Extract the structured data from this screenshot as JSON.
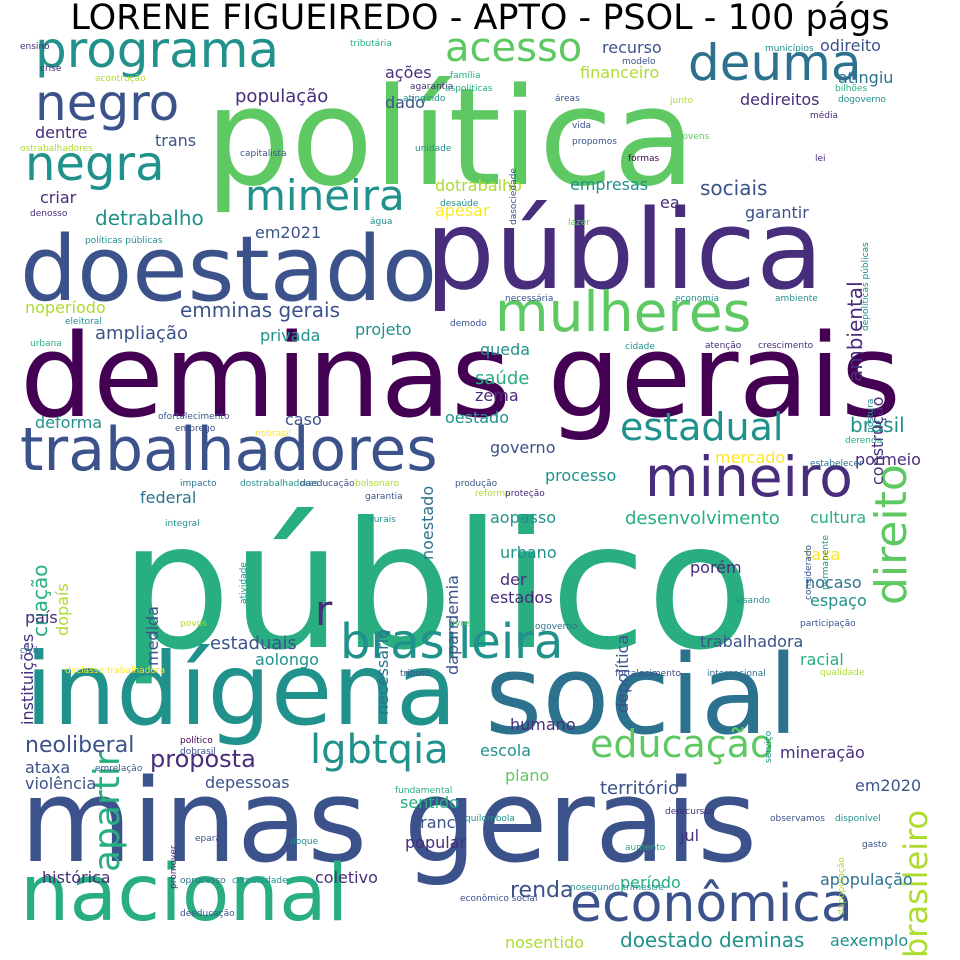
{
  "title": "LORENE FIGUEIREDO - APTO - PSOL - 100 págs",
  "colors": {
    "c0": "#440154",
    "c1": "#472d7b",
    "c2": "#3b528b",
    "c3": "#2c728e",
    "c4": "#21918c",
    "c5": "#28ae80",
    "c6": "#5ec962",
    "c7": "#addc30",
    "c8": "#fde725"
  },
  "words": [
    {
      "t": "público",
      "c": "c5"
    },
    {
      "t": "política",
      "c": "c6"
    },
    {
      "t": "deminas gerais",
      "c": "c0"
    },
    {
      "t": "minas gerais",
      "c": "c2"
    },
    {
      "t": "pública",
      "c": "c1"
    },
    {
      "t": "social",
      "c": "c3"
    },
    {
      "t": "indígena",
      "c": "c4"
    },
    {
      "t": "doestado",
      "c": "c2"
    },
    {
      "t": "nacional",
      "c": "c5"
    },
    {
      "t": "trabalhadores",
      "c": "c2"
    },
    {
      "t": "mulheres",
      "c": "c6"
    },
    {
      "t": "mineiro",
      "c": "c1"
    },
    {
      "t": "econômica",
      "c": "c2"
    },
    {
      "t": "brasileira",
      "c": "c4"
    },
    {
      "t": "programa",
      "c": "c4"
    },
    {
      "t": "deuma",
      "c": "c3"
    },
    {
      "t": "negro",
      "c": "c2"
    },
    {
      "t": "negra",
      "c": "c4"
    },
    {
      "t": "direito",
      "c": "c6"
    },
    {
      "t": "mineira",
      "c": "c4"
    },
    {
      "t": "acesso",
      "c": "c6"
    },
    {
      "t": "estadual",
      "c": "c4"
    },
    {
      "t": "educação",
      "c": "c6"
    },
    {
      "t": "lgbtqia",
      "c": "c4"
    },
    {
      "t": "apartir",
      "c": "c5"
    },
    {
      "t": "brasileiro",
      "c": "c7"
    },
    {
      "t": "r",
      "c": "c1"
    },
    {
      "t": "renda",
      "c": "c2"
    },
    {
      "t": "doestado deminas",
      "c": "c4"
    },
    {
      "t": "proposta",
      "c": "c1"
    },
    {
      "t": "neoliberal",
      "c": "c2"
    },
    {
      "t": "emminas gerais",
      "c": "c2"
    },
    {
      "t": "detrabalho",
      "c": "c4"
    },
    {
      "t": "sociais",
      "c": "c2"
    },
    {
      "t": "ambiental",
      "c": "c1"
    },
    {
      "t": "brasil",
      "c": "c4"
    },
    {
      "t": "desenvolvimento",
      "c": "c5"
    },
    {
      "t": "saúde",
      "c": "c5"
    },
    {
      "t": "ampliação",
      "c": "c2"
    },
    {
      "t": "população",
      "c": "c1"
    },
    {
      "t": "criação",
      "c": "c5"
    },
    {
      "t": "mercado",
      "c": "c8"
    },
    {
      "t": "território",
      "c": "c2"
    },
    {
      "t": "empresas",
      "c": "c4"
    },
    {
      "t": "estaduais",
      "c": "c2"
    },
    {
      "t": "financeiro",
      "c": "c7"
    },
    {
      "t": "recurso",
      "c": "c2"
    },
    {
      "t": "ações",
      "c": "c1"
    },
    {
      "t": "dentre",
      "c": "c1"
    },
    {
      "t": "trans",
      "c": "c2"
    },
    {
      "t": "criar",
      "c": "c1"
    },
    {
      "t": "dedireitos",
      "c": "c1"
    },
    {
      "t": "odireito",
      "c": "c2"
    },
    {
      "t": "atingiu",
      "c": "c3"
    },
    {
      "t": "dado",
      "c": "c2"
    },
    {
      "t": "dotrabalho",
      "c": "c7"
    },
    {
      "t": "apesar",
      "c": "c8"
    },
    {
      "t": "ea",
      "c": "c1"
    },
    {
      "t": "garantir",
      "c": "c2"
    },
    {
      "t": "em2021",
      "c": "c2"
    },
    {
      "t": "noperíodo",
      "c": "c7"
    },
    {
      "t": "privada",
      "c": "c4"
    },
    {
      "t": "projeto",
      "c": "c4"
    },
    {
      "t": "queda",
      "c": "c4"
    },
    {
      "t": "construção",
      "c": "c1"
    },
    {
      "t": "deforma",
      "c": "c4"
    },
    {
      "t": "caso",
      "c": "c2"
    },
    {
      "t": "noestado",
      "c": "c3"
    },
    {
      "t": "zema",
      "c": "c1"
    },
    {
      "t": "oestado",
      "c": "c4"
    },
    {
      "t": "governo",
      "c": "c2"
    },
    {
      "t": "processo",
      "c": "c4"
    },
    {
      "t": "pormeio",
      "c": "c1"
    },
    {
      "t": "federal",
      "c": "c3"
    },
    {
      "t": "cultura",
      "c": "c5"
    },
    {
      "t": "taxa",
      "c": "c8"
    },
    {
      "t": "espaço",
      "c": "c4"
    },
    {
      "t": "nocaso",
      "c": "c3"
    },
    {
      "t": "medida",
      "c": "c2"
    },
    {
      "t": "necessário",
      "c": "c3"
    },
    {
      "t": "dapandemia",
      "c": "c2"
    },
    {
      "t": "depolítica",
      "c": "c2"
    },
    {
      "t": "aopasso",
      "c": "c4"
    },
    {
      "t": "urbano",
      "c": "c4"
    },
    {
      "t": "porém",
      "c": "c1"
    },
    {
      "t": "der",
      "c": "c1"
    },
    {
      "t": "estados",
      "c": "c1"
    },
    {
      "t": "país",
      "c": "c1"
    },
    {
      "t": "instituições",
      "c": "c1"
    },
    {
      "t": "dopaís",
      "c": "c7"
    },
    {
      "t": "aolongo",
      "c": "c4"
    },
    {
      "t": "trabalhadora",
      "c": "c2"
    },
    {
      "t": "racial",
      "c": "c5"
    },
    {
      "t": "humano",
      "c": "c1"
    },
    {
      "t": "escola",
      "c": "c4"
    },
    {
      "t": "ataxa",
      "c": "c2"
    },
    {
      "t": "plano",
      "c": "c6"
    },
    {
      "t": "violência",
      "c": "c2"
    },
    {
      "t": "depessoas",
      "c": "c2"
    },
    {
      "t": "mineração",
      "c": "c1"
    },
    {
      "t": "em2020",
      "c": "c2"
    },
    {
      "t": "sentido",
      "c": "c5"
    },
    {
      "t": "branco",
      "c": "c2"
    },
    {
      "t": "popular",
      "c": "c1"
    },
    {
      "t": "jul",
      "c": "c1"
    },
    {
      "t": "histórica",
      "c": "c1"
    },
    {
      "t": "coletivo",
      "c": "c1"
    },
    {
      "t": "período",
      "c": "c5"
    },
    {
      "t": "apopulação",
      "c": "c3"
    },
    {
      "t": "nosentido",
      "c": "c7"
    },
    {
      "t": "aexemplo",
      "c": "c4"
    },
    {
      "t": "ensino",
      "c": "c1"
    },
    {
      "t": "crise",
      "c": "c1"
    },
    {
      "t": "acontrução",
      "c": "c7"
    },
    {
      "t": "tributária",
      "c": "c5"
    },
    {
      "t": "família",
      "c": "c5"
    },
    {
      "t": "modelo",
      "c": "c2"
    },
    {
      "t": "agarantia",
      "c": "c1"
    },
    {
      "t": "aspolíticas",
      "c": "c5"
    },
    {
      "t": "atingindo",
      "c": "c4"
    },
    {
      "t": "áreas",
      "c": "c2"
    },
    {
      "t": "junto",
      "c": "c7"
    },
    {
      "t": "municípios",
      "c": "c4"
    },
    {
      "t": "bilhões",
      "c": "c5"
    },
    {
      "t": "dogoverno",
      "c": "c4"
    },
    {
      "t": "média",
      "c": "c1"
    },
    {
      "t": "dasociedade",
      "c": "c2"
    },
    {
      "t": "vida",
      "c": "c2"
    },
    {
      "t": "propomos",
      "c": "c2"
    },
    {
      "t": "unidade",
      "c": "c4"
    },
    {
      "t": "jovens",
      "c": "c6"
    },
    {
      "t": "formas",
      "c": "c0"
    },
    {
      "t": "lei",
      "c": "c1"
    },
    {
      "t": "depolíticas públicas",
      "c": "c4"
    },
    {
      "t": "ostrabalhadores",
      "c": "c7"
    },
    {
      "t": "capitalista",
      "c": "c2"
    },
    {
      "t": "denosso",
      "c": "c1"
    },
    {
      "t": "água",
      "c": "c4"
    },
    {
      "t": "desaúde",
      "c": "c4"
    },
    {
      "t": "lazer",
      "c": "c6"
    },
    {
      "t": "políticas públicas",
      "c": "c4"
    },
    {
      "t": "necessária",
      "c": "c2"
    },
    {
      "t": "economia",
      "c": "c4"
    },
    {
      "t": "ambiente",
      "c": "c4"
    },
    {
      "t": "eleitoral",
      "c": "c4"
    },
    {
      "t": "demodo",
      "c": "c2"
    },
    {
      "t": "urbana",
      "c": "c5"
    },
    {
      "t": "cidade",
      "c": "c4"
    },
    {
      "t": "atenção",
      "c": "c1"
    },
    {
      "t": "crescimento",
      "c": "c1"
    },
    {
      "t": "postura",
      "c": "c4"
    },
    {
      "t": "ofortalecimento",
      "c": "c2"
    },
    {
      "t": "emprego",
      "c": "c2"
    },
    {
      "t": "nobrasil",
      "c": "c8"
    },
    {
      "t": "derenda",
      "c": "c5"
    },
    {
      "t": "estabelecer",
      "c": "c3"
    },
    {
      "t": "impacto",
      "c": "c3"
    },
    {
      "t": "dostrabalhadores",
      "c": "c4"
    },
    {
      "t": "daeducação",
      "c": "c2"
    },
    {
      "t": "bolsonaro",
      "c": "c7"
    },
    {
      "t": "produção",
      "c": "c2"
    },
    {
      "t": "garantia",
      "c": "c2"
    },
    {
      "t": "reforma",
      "c": "c7"
    },
    {
      "t": "proteção",
      "c": "c1"
    },
    {
      "t": "integral",
      "c": "c4"
    },
    {
      "t": "rurais",
      "c": "c4"
    },
    {
      "t": "atividade",
      "c": "c4"
    },
    {
      "t": "permanente",
      "c": "c4"
    },
    {
      "t": "considerado",
      "c": "c2"
    },
    {
      "t": "povos",
      "c": "c7"
    },
    {
      "t": "livre",
      "c": "c6"
    },
    {
      "t": "visando",
      "c": "c4"
    },
    {
      "t": "ogoverno",
      "c": "c3"
    },
    {
      "t": "participação",
      "c": "c2"
    },
    {
      "t": "civil",
      "c": "c3"
    },
    {
      "t": "daclasse trabalhadora",
      "c": "c8"
    },
    {
      "t": "tributo",
      "c": "c2"
    },
    {
      "t": "fortalecimento",
      "c": "c2"
    },
    {
      "t": "internacional",
      "c": "c3"
    },
    {
      "t": "qualidade",
      "c": "c7"
    },
    {
      "t": "serviço",
      "c": "c4"
    },
    {
      "t": "político",
      "c": "c0"
    },
    {
      "t": "dobrasil",
      "c": "c2"
    },
    {
      "t": "emrelação",
      "c": "c2"
    },
    {
      "t": "fundamental",
      "c": "c5"
    },
    {
      "t": "quilombola",
      "c": "c4"
    },
    {
      "t": "derecursos",
      "c": "c1"
    },
    {
      "t": "observamos",
      "c": "c2"
    },
    {
      "t": "disponível",
      "c": "c4"
    },
    {
      "t": "doque",
      "c": "c4"
    },
    {
      "t": "epara",
      "c": "c2"
    },
    {
      "t": "promover",
      "c": "c1"
    },
    {
      "t": "dapopulação",
      "c": "c7"
    },
    {
      "t": "aumento",
      "c": "c5"
    },
    {
      "t": "gasto",
      "c": "c2"
    },
    {
      "t": "oprocesso",
      "c": "c3"
    },
    {
      "t": "comunidade",
      "c": "c4"
    },
    {
      "t": "nosegundo trimestre",
      "c": "c4"
    },
    {
      "t": "deeducação",
      "c": "c2"
    },
    {
      "t": "econômico social",
      "c": "c2"
    }
  ]
}
